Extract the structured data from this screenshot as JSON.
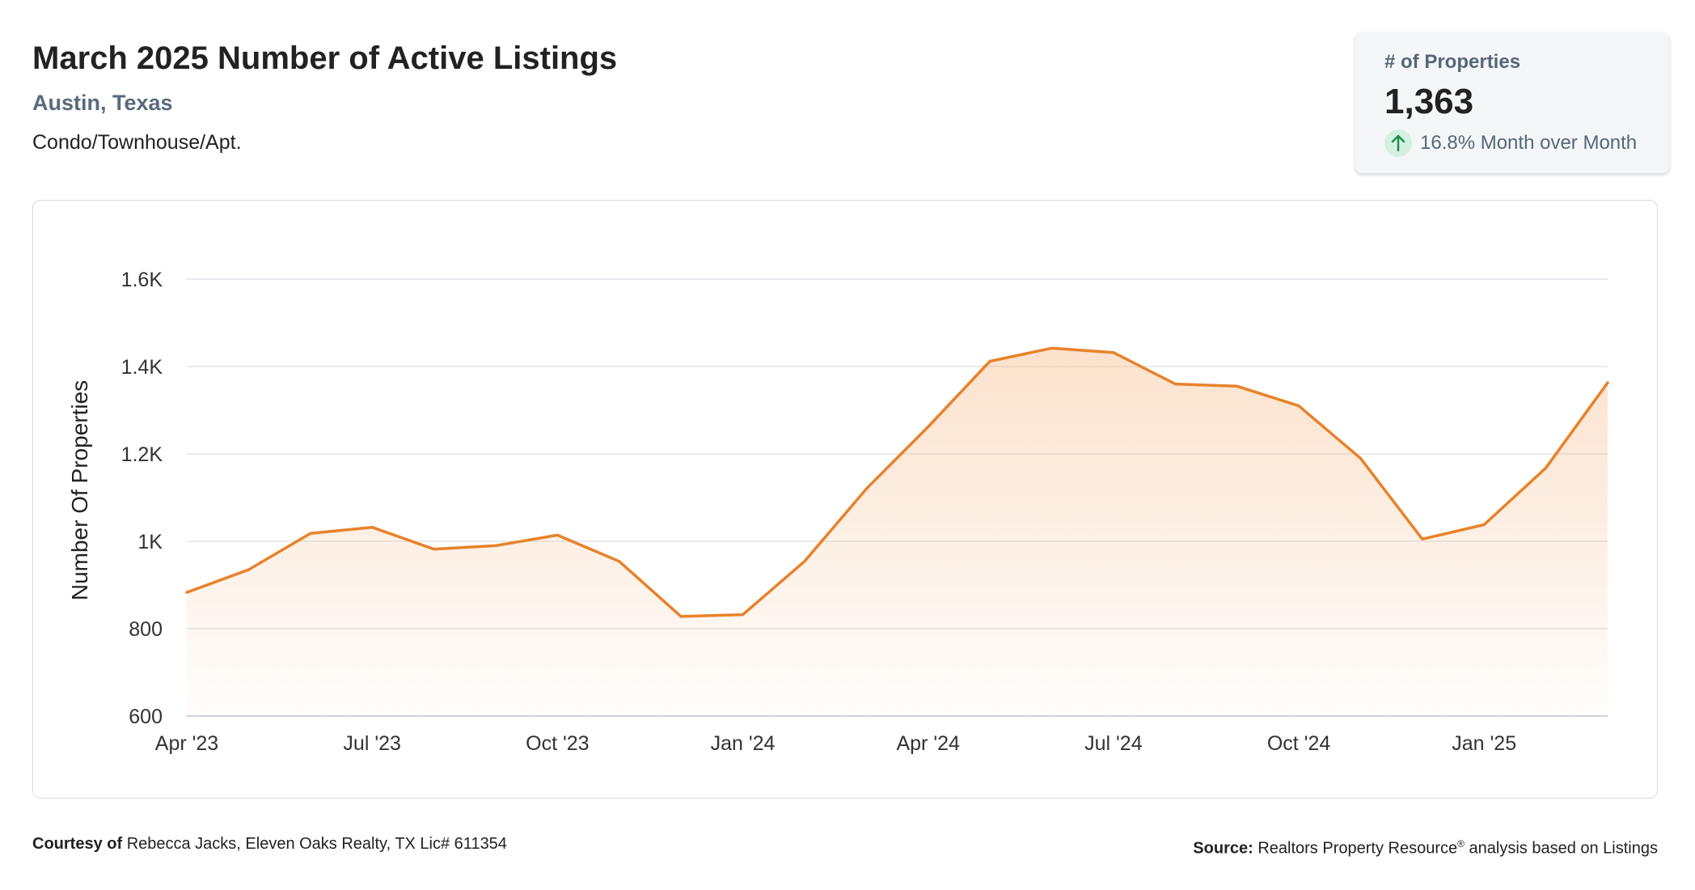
{
  "header": {
    "title": "March 2025 Number of Active Listings",
    "location": "Austin, Texas",
    "property_type": "Condo/Townhouse/Apt."
  },
  "kpi": {
    "label": "# of Properties",
    "value": "1,363",
    "change_text": "16.8% Month over Month",
    "direction": "up",
    "change_color": "#1f8a4c",
    "change_bg": "#d4f1df"
  },
  "footer": {
    "courtesy_label": "Courtesy of",
    "courtesy_text": "Rebecca Jacks, Eleven Oaks Realty, TX Lic# 611354",
    "source_label": "Source:",
    "source_text_1": "Realtors Property Resource",
    "source_sup": "®",
    "source_text_2": " analysis based on Listings"
  },
  "chart_data": {
    "type": "area",
    "title": "",
    "xlabel": "",
    "ylabel": "Number Of Properties",
    "line_color": "#e8822a",
    "fill_color": "#f5b987",
    "grid": true,
    "ylim": [
      600,
      1650
    ],
    "y_ticks": [
      600,
      800,
      1000,
      1200,
      1400,
      1600
    ],
    "y_tick_labels": [
      "600",
      "800",
      "1K",
      "1.2K",
      "1.4K",
      "1.6K"
    ],
    "x_tick_labels": [
      "Apr '23",
      "Jul '23",
      "Oct '23",
      "Jan '24",
      "Apr '24",
      "Jul '24",
      "Oct '24",
      "Jan '25"
    ],
    "x_tick_index": [
      0,
      3,
      6,
      9,
      12,
      15,
      18,
      21
    ],
    "months": [
      "Apr '23",
      "May '23",
      "Jun '23",
      "Jul '23",
      "Aug '23",
      "Sep '23",
      "Oct '23",
      "Nov '23",
      "Dec '23",
      "Jan '24",
      "Feb '24",
      "Mar '24",
      "Apr '24",
      "May '24",
      "Jun '24",
      "Jul '24",
      "Aug '24",
      "Sep '24",
      "Oct '24",
      "Nov '24",
      "Dec '24",
      "Jan '25",
      "Feb '25",
      "Mar '25"
    ],
    "values": [
      883,
      935,
      1018,
      1032,
      982,
      990,
      1014,
      954,
      828,
      832,
      954,
      1120,
      1262,
      1412,
      1442,
      1432,
      1360,
      1355,
      1310,
      1190,
      1005,
      1038,
      1168,
      1363
    ]
  }
}
